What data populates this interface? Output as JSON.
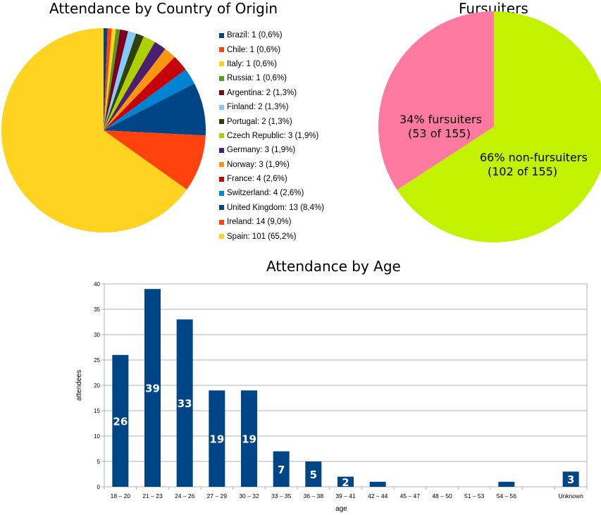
{
  "chart_data": [
    {
      "type": "pie",
      "title": "Attendance by Country of Origin",
      "legend_position": "right",
      "slices": [
        {
          "label": "Brazil: 1 (0,6%)",
          "value": 1,
          "color": "#004586"
        },
        {
          "label": "Chile: 1 (0,6%)",
          "value": 1,
          "color": "#ff420e"
        },
        {
          "label": "Italy: 1 (0,6%)",
          "value": 1,
          "color": "#ffd320"
        },
        {
          "label": "Russia: 1 (0,6%)",
          "value": 1,
          "color": "#579d1c"
        },
        {
          "label": "Argentina: 2 (1,3%)",
          "value": 2,
          "color": "#7e0021"
        },
        {
          "label": "Finland: 2 (1,3%)",
          "value": 2,
          "color": "#83caff"
        },
        {
          "label": "Portugal: 2 (1,3%)",
          "value": 2,
          "color": "#314004"
        },
        {
          "label": "Czech Republic: 3 (1,9%)",
          "value": 3,
          "color": "#aecf00"
        },
        {
          "label": "Germany: 3 (1,9%)",
          "value": 3,
          "color": "#4b1f6f"
        },
        {
          "label": "Norway: 3 (1,9%)",
          "value": 3,
          "color": "#ff950e"
        },
        {
          "label": "France: 4 (2,6%)",
          "value": 4,
          "color": "#c5000b"
        },
        {
          "label": "Switzerland: 4 (2,6%)",
          "value": 4,
          "color": "#0084d1"
        },
        {
          "label": "United Kingdom: 13 (8,4%)",
          "value": 13,
          "color": "#004586"
        },
        {
          "label": "Ireland: 14 (9,0%)",
          "value": 14,
          "color": "#ff420e"
        },
        {
          "label": "Spain: 101 (65,2%)",
          "value": 101,
          "color": "#ffd320"
        }
      ]
    },
    {
      "type": "pie",
      "title": "Fursuiters",
      "slices": [
        {
          "label_line1": "34% fursuiters",
          "label_line2": "(53 of 155)",
          "value": 53,
          "color": "#ff7aa0"
        },
        {
          "label_line1": "66% non-fursuiters",
          "label_line2": "(102 of 155)",
          "value": 102,
          "color": "#c2f200"
        }
      ]
    },
    {
      "type": "bar",
      "title": "Attendance by Age",
      "xlabel": "age",
      "ylabel": "attendees",
      "ylim": [
        0,
        40
      ],
      "yticks": [
        0,
        5,
        10,
        15,
        20,
        25,
        30,
        35,
        40
      ],
      "grid": true,
      "bar_color": "#004586",
      "categories": [
        "18 – 20",
        "21 – 23",
        "24 – 26",
        "27 – 29",
        "30 – 32",
        "33 – 35",
        "36 – 38",
        "39 – 41",
        "42 – 44",
        "45 – 47",
        "48 – 50",
        "51 – 53",
        "54 – 56",
        "",
        "Unknown"
      ],
      "values": [
        26,
        39,
        33,
        19,
        19,
        7,
        5,
        2,
        1,
        0,
        0,
        0,
        1,
        0,
        3
      ],
      "data_labels": [
        "26",
        "39",
        "33",
        "19",
        "19",
        "7",
        "5",
        "2",
        "",
        "",
        "",
        "",
        "",
        "",
        "3"
      ]
    }
  ]
}
